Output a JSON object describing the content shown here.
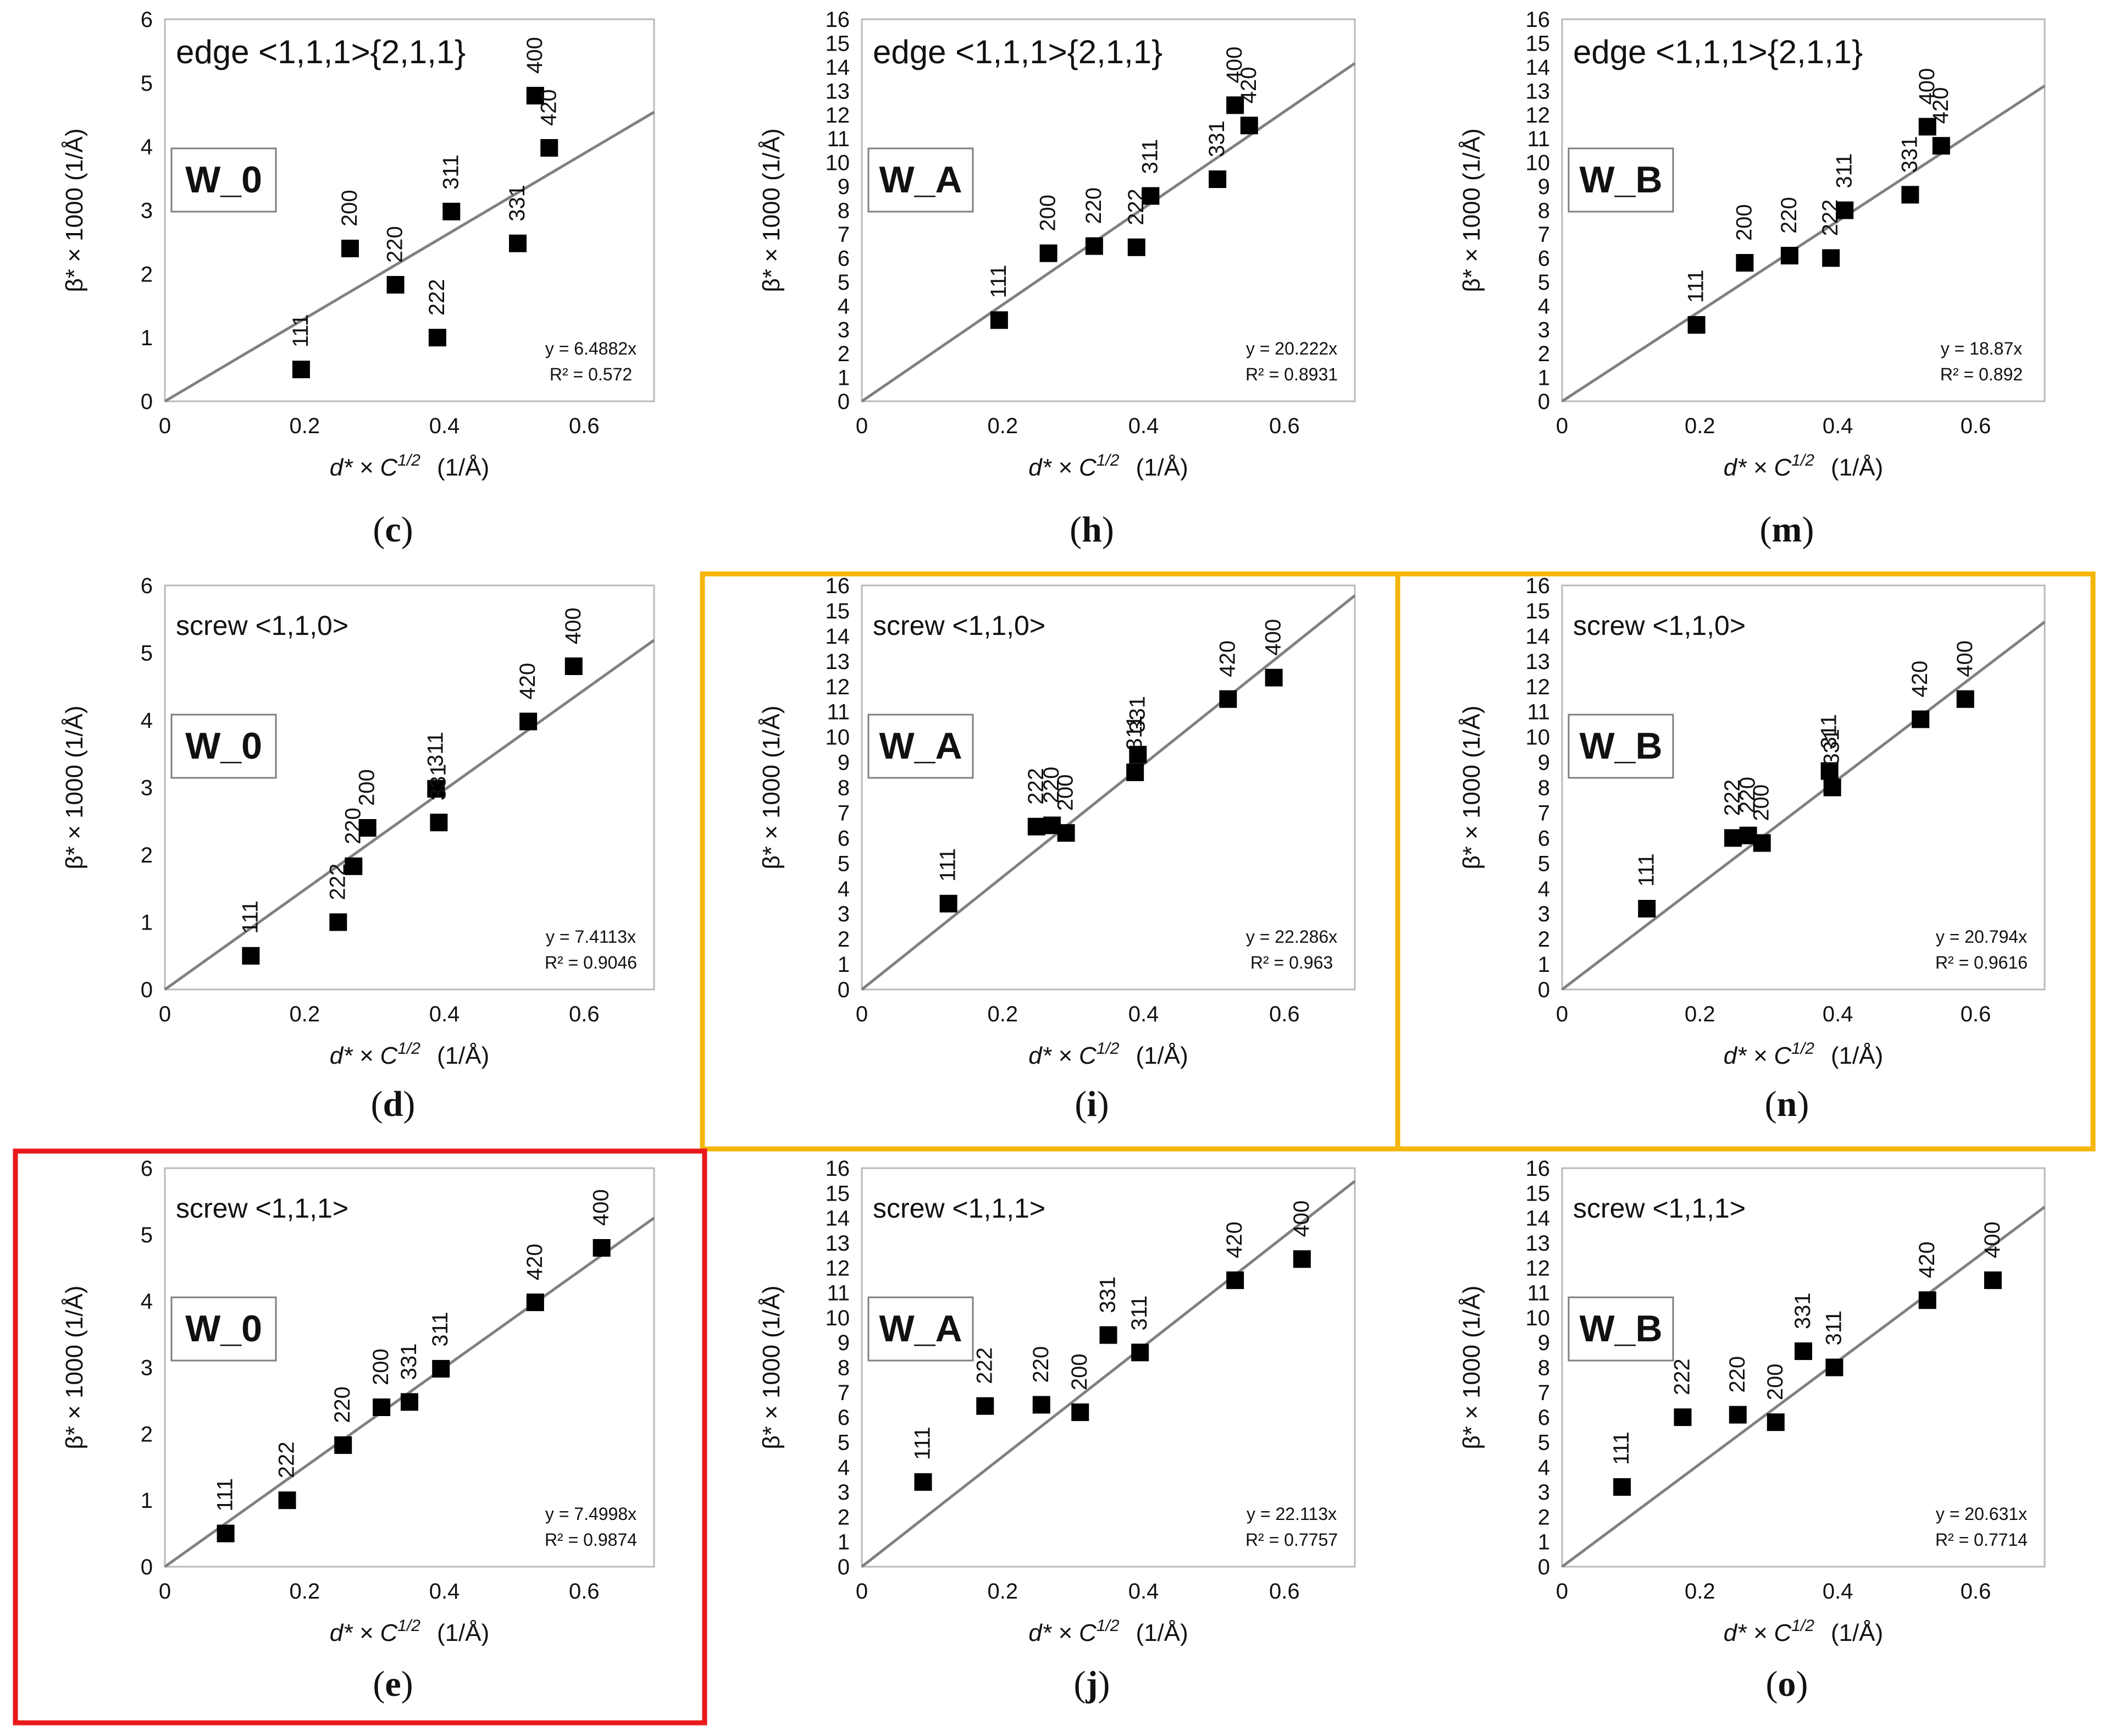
{
  "figure": {
    "xlabel_main": "d* × C",
    "xlabel_sup": "1/2",
    "xlabel_unit": "(1/Å)",
    "ylabel": "β* × 1000  (1/Å)",
    "highlight_colors": {
      "red": "#e8191b",
      "orange": "#f5b50a"
    },
    "line_color": "#808080",
    "marker_color": "#000000"
  },
  "chart_data": [
    {
      "id": "c",
      "panel_label": "(c)",
      "type": "scatter",
      "title": "edge <1,1,1>{2,1,1}",
      "sample": "W_0",
      "x_ticks": [
        "0",
        "0.2",
        "0.4",
        "0.6"
      ],
      "xlim": [
        0,
        0.7
      ],
      "y_ticks": [
        "0",
        "1",
        "2",
        "3",
        "4",
        "5",
        "6"
      ],
      "ylim": [
        0,
        6
      ],
      "points": [
        {
          "label": "111",
          "x": 0.195,
          "y": 0.5
        },
        {
          "label": "200",
          "x": 0.265,
          "y": 2.4
        },
        {
          "label": "220",
          "x": 0.33,
          "y": 1.83
        },
        {
          "label": "222",
          "x": 0.39,
          "y": 1.0
        },
        {
          "label": "311",
          "x": 0.41,
          "y": 2.98
        },
        {
          "label": "331",
          "x": 0.505,
          "y": 2.48
        },
        {
          "label": "400",
          "x": 0.53,
          "y": 4.8
        },
        {
          "label": "420",
          "x": 0.55,
          "y": 3.98
        }
      ],
      "fit": {
        "slope": 6.4882,
        "equation": "y = 6.4882x",
        "r2": "R² = 0.572"
      }
    },
    {
      "id": "h",
      "panel_label": "(h)",
      "type": "scatter",
      "title": "edge <1,1,1>{2,1,1}",
      "sample": "W_A",
      "x_ticks": [
        "0",
        "0.2",
        "0.4",
        "0.6"
      ],
      "xlim": [
        0,
        0.7
      ],
      "y_ticks": [
        "0",
        "1",
        "2",
        "3",
        "4",
        "5",
        "6",
        "7",
        "8",
        "9",
        "10",
        "11",
        "12",
        "13",
        "14",
        "15",
        "16"
      ],
      "ylim": [
        0,
        16
      ],
      "points": [
        {
          "label": "111",
          "x": 0.195,
          "y": 3.4
        },
        {
          "label": "200",
          "x": 0.265,
          "y": 6.2
        },
        {
          "label": "220",
          "x": 0.33,
          "y": 6.5
        },
        {
          "label": "222",
          "x": 0.39,
          "y": 6.45
        },
        {
          "label": "311",
          "x": 0.41,
          "y": 8.6
        },
        {
          "label": "331",
          "x": 0.505,
          "y": 9.3
        },
        {
          "label": "400",
          "x": 0.53,
          "y": 12.4
        },
        {
          "label": "420",
          "x": 0.55,
          "y": 11.55
        }
      ],
      "fit": {
        "slope": 20.222,
        "equation": "y = 20.222x",
        "r2": "R² = 0.8931"
      }
    },
    {
      "id": "m",
      "panel_label": "(m)",
      "type": "scatter",
      "title": "edge <1,1,1>{2,1,1}",
      "sample": "W_B",
      "x_ticks": [
        "0",
        "0.2",
        "0.4",
        "0.6"
      ],
      "xlim": [
        0,
        0.7
      ],
      "y_ticks": [
        "0",
        "1",
        "2",
        "3",
        "4",
        "5",
        "6",
        "7",
        "8",
        "9",
        "10",
        "11",
        "12",
        "13",
        "14",
        "15",
        "16"
      ],
      "ylim": [
        0,
        16
      ],
      "points": [
        {
          "label": "111",
          "x": 0.195,
          "y": 3.2
        },
        {
          "label": "200",
          "x": 0.265,
          "y": 5.8
        },
        {
          "label": "220",
          "x": 0.33,
          "y": 6.1
        },
        {
          "label": "222",
          "x": 0.39,
          "y": 6.0
        },
        {
          "label": "311",
          "x": 0.41,
          "y": 8.0
        },
        {
          "label": "331",
          "x": 0.505,
          "y": 8.65
        },
        {
          "label": "400",
          "x": 0.53,
          "y": 11.5
        },
        {
          "label": "420",
          "x": 0.55,
          "y": 10.7
        }
      ],
      "fit": {
        "slope": 18.87,
        "equation": "y = 18.87x",
        "r2": "R² = 0.892"
      }
    },
    {
      "id": "d",
      "panel_label": "(d)",
      "type": "scatter",
      "title": "screw <1,1,0>",
      "sample": "W_0",
      "x_ticks": [
        "0",
        "0.2",
        "0.4",
        "0.6"
      ],
      "xlim": [
        0,
        0.7
      ],
      "y_ticks": [
        "0",
        "1",
        "2",
        "3",
        "4",
        "5",
        "6"
      ],
      "ylim": [
        0,
        6
      ],
      "points": [
        {
          "label": "111",
          "x": 0.123,
          "y": 0.5
        },
        {
          "label": "222",
          "x": 0.248,
          "y": 1.0
        },
        {
          "label": "220",
          "x": 0.27,
          "y": 1.83
        },
        {
          "label": "200",
          "x": 0.29,
          "y": 2.4
        },
        {
          "label": "311",
          "x": 0.388,
          "y": 2.98
        },
        {
          "label": "331",
          "x": 0.392,
          "y": 2.48
        },
        {
          "label": "420",
          "x": 0.52,
          "y": 3.98
        },
        {
          "label": "400",
          "x": 0.585,
          "y": 4.8
        }
      ],
      "fit": {
        "slope": 7.4113,
        "equation": "y = 7.4113x",
        "r2": "R² = 0.9046"
      }
    },
    {
      "id": "i",
      "panel_label": "(i)",
      "type": "scatter",
      "title": "screw <1,1,0>",
      "sample": "W_A",
      "x_ticks": [
        "0",
        "0.2",
        "0.4",
        "0.6"
      ],
      "xlim": [
        0,
        0.7
      ],
      "y_ticks": [
        "0",
        "1",
        "2",
        "3",
        "4",
        "5",
        "6",
        "7",
        "8",
        "9",
        "10",
        "11",
        "12",
        "13",
        "14",
        "15",
        "16"
      ],
      "ylim": [
        0,
        16
      ],
      "points": [
        {
          "label": "111",
          "x": 0.123,
          "y": 3.4
        },
        {
          "label": "222",
          "x": 0.248,
          "y": 6.45
        },
        {
          "label": "220",
          "x": 0.27,
          "y": 6.5
        },
        {
          "label": "200",
          "x": 0.29,
          "y": 6.2
        },
        {
          "label": "311",
          "x": 0.388,
          "y": 8.6
        },
        {
          "label": "331",
          "x": 0.392,
          "y": 9.3
        },
        {
          "label": "420",
          "x": 0.52,
          "y": 11.5
        },
        {
          "label": "400",
          "x": 0.585,
          "y": 12.35
        }
      ],
      "fit": {
        "slope": 22.286,
        "equation": "y = 22.286x",
        "r2": "R² = 0.963"
      }
    },
    {
      "id": "n",
      "panel_label": "(n)",
      "type": "scatter",
      "title": "screw <1,1,0>",
      "sample": "W_B",
      "x_ticks": [
        "0",
        "0.2",
        "0.4",
        "0.6"
      ],
      "xlim": [
        0,
        0.7
      ],
      "y_ticks": [
        "0",
        "1",
        "2",
        "3",
        "4",
        "5",
        "6",
        "7",
        "8",
        "9",
        "10",
        "11",
        "12",
        "13",
        "14",
        "15",
        "16"
      ],
      "ylim": [
        0,
        16
      ],
      "points": [
        {
          "label": "111",
          "x": 0.123,
          "y": 3.2
        },
        {
          "label": "222",
          "x": 0.248,
          "y": 6.0
        },
        {
          "label": "220",
          "x": 0.27,
          "y": 6.1
        },
        {
          "label": "200",
          "x": 0.29,
          "y": 5.8
        },
        {
          "label": "311",
          "x": 0.388,
          "y": 8.65
        },
        {
          "label": "331",
          "x": 0.392,
          "y": 8.0
        },
        {
          "label": "420",
          "x": 0.52,
          "y": 10.7
        },
        {
          "label": "400",
          "x": 0.585,
          "y": 11.5
        }
      ],
      "fit": {
        "slope": 20.794,
        "equation": "y = 20.794x",
        "r2": "R² = 0.9616"
      }
    },
    {
      "id": "e",
      "panel_label": "(e)",
      "type": "scatter",
      "title": "screw <1,1,1>",
      "sample": "W_0",
      "x_ticks": [
        "0",
        "0.2",
        "0.4",
        "0.6"
      ],
      "xlim": [
        0,
        0.7
      ],
      "y_ticks": [
        "0",
        "1",
        "2",
        "3",
        "4",
        "5",
        "6"
      ],
      "ylim": [
        0,
        6
      ],
      "points": [
        {
          "label": "111",
          "x": 0.087,
          "y": 0.5
        },
        {
          "label": "222",
          "x": 0.175,
          "y": 1.0
        },
        {
          "label": "220",
          "x": 0.255,
          "y": 1.83
        },
        {
          "label": "200",
          "x": 0.31,
          "y": 2.4
        },
        {
          "label": "331",
          "x": 0.35,
          "y": 2.48
        },
        {
          "label": "311",
          "x": 0.395,
          "y": 2.98
        },
        {
          "label": "420",
          "x": 0.53,
          "y": 3.98
        },
        {
          "label": "400",
          "x": 0.625,
          "y": 4.8
        }
      ],
      "fit": {
        "slope": 7.4998,
        "equation": "y = 7.4998x",
        "r2": "R² = 0.9874"
      }
    },
    {
      "id": "j",
      "panel_label": "(j)",
      "type": "scatter",
      "title": "screw <1,1,1>",
      "sample": "W_A",
      "x_ticks": [
        "0",
        "0.2",
        "0.4",
        "0.6"
      ],
      "xlim": [
        0,
        0.7
      ],
      "y_ticks": [
        "0",
        "1",
        "2",
        "3",
        "4",
        "5",
        "6",
        "7",
        "8",
        "9",
        "10",
        "11",
        "12",
        "13",
        "14",
        "15",
        "16"
      ],
      "ylim": [
        0,
        16
      ],
      "points": [
        {
          "label": "111",
          "x": 0.087,
          "y": 3.4
        },
        {
          "label": "222",
          "x": 0.175,
          "y": 6.45
        },
        {
          "label": "220",
          "x": 0.255,
          "y": 6.5
        },
        {
          "label": "200",
          "x": 0.31,
          "y": 6.2
        },
        {
          "label": "331",
          "x": 0.35,
          "y": 9.3
        },
        {
          "label": "311",
          "x": 0.395,
          "y": 8.6
        },
        {
          "label": "420",
          "x": 0.53,
          "y": 11.5
        },
        {
          "label": "400",
          "x": 0.625,
          "y": 12.35
        }
      ],
      "fit": {
        "slope": 22.113,
        "equation": "y = 22.113x",
        "r2": "R² = 0.7757"
      }
    },
    {
      "id": "o",
      "panel_label": "(o)",
      "type": "scatter",
      "title": "screw <1,1,1>",
      "sample": "W_B",
      "x_ticks": [
        "0",
        "0.2",
        "0.4",
        "0.6"
      ],
      "xlim": [
        0,
        0.7
      ],
      "y_ticks": [
        "0",
        "1",
        "2",
        "3",
        "4",
        "5",
        "6",
        "7",
        "8",
        "9",
        "10",
        "11",
        "12",
        "13",
        "14",
        "15",
        "16"
      ],
      "ylim": [
        0,
        16
      ],
      "points": [
        {
          "label": "111",
          "x": 0.087,
          "y": 3.2
        },
        {
          "label": "222",
          "x": 0.175,
          "y": 6.0
        },
        {
          "label": "220",
          "x": 0.255,
          "y": 6.1
        },
        {
          "label": "200",
          "x": 0.31,
          "y": 5.8
        },
        {
          "label": "331",
          "x": 0.35,
          "y": 8.65
        },
        {
          "label": "311",
          "x": 0.395,
          "y": 8.0
        },
        {
          "label": "420",
          "x": 0.53,
          "y": 10.7
        },
        {
          "label": "400",
          "x": 0.625,
          "y": 11.5
        }
      ],
      "fit": {
        "slope": 20.631,
        "equation": "y = 20.631x",
        "r2": "R² = 0.7714"
      }
    }
  ]
}
